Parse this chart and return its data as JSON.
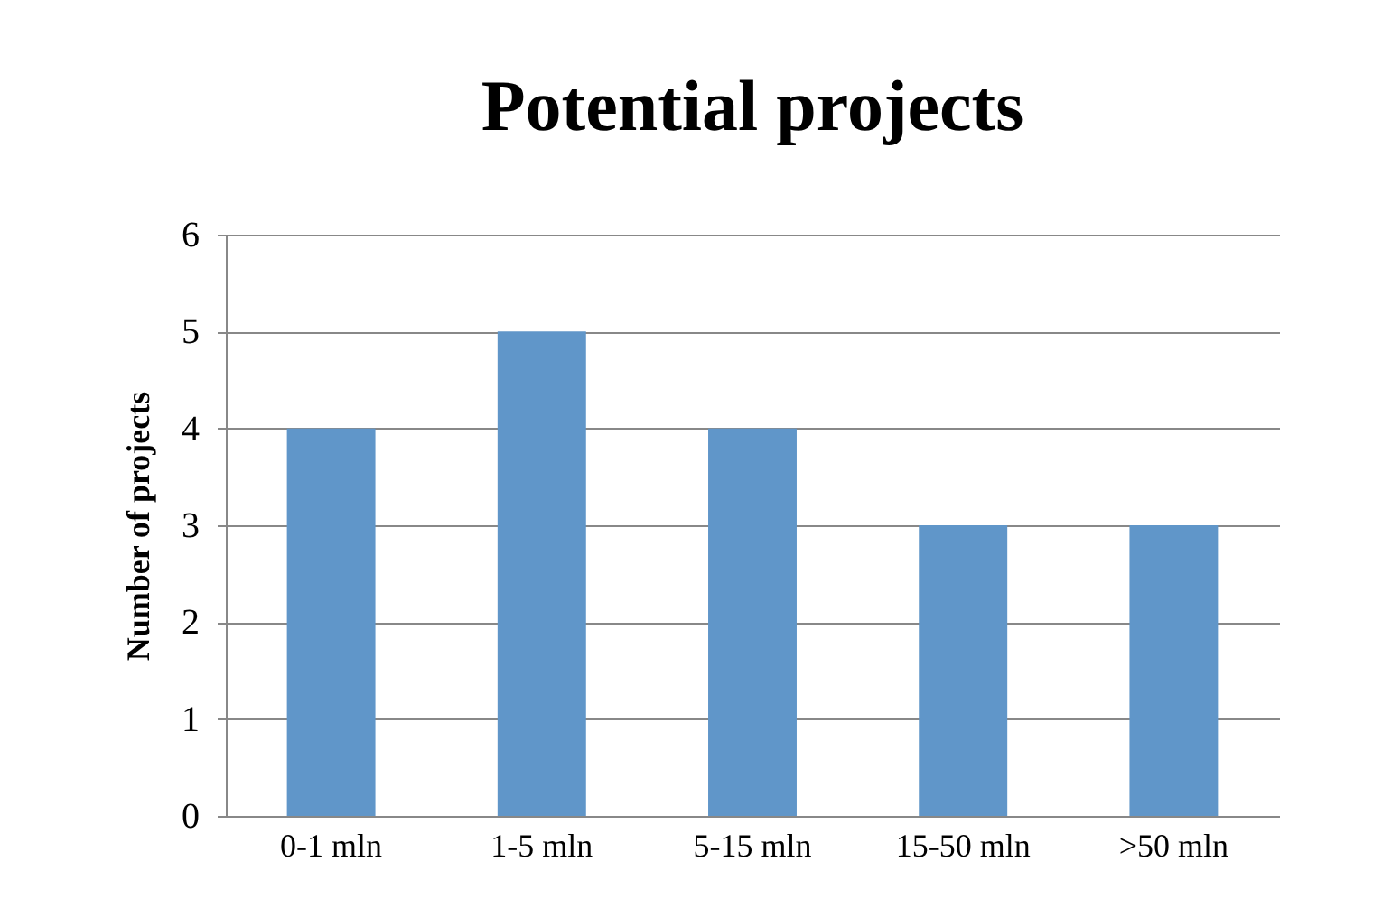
{
  "chart_data": {
    "type": "bar",
    "title": "Potential projects",
    "ylabel": "Number of projects",
    "categories": [
      "0-1 mln",
      "1-5 mln",
      "5-15 mln",
      "15-50 mln",
      ">50 mln"
    ],
    "values": [
      4,
      5,
      4,
      3,
      3
    ],
    "color": "#6096c9",
    "ylim": [
      0,
      6
    ],
    "yticks": [
      0,
      1,
      2,
      3,
      4,
      5,
      6
    ],
    "grid": true
  }
}
